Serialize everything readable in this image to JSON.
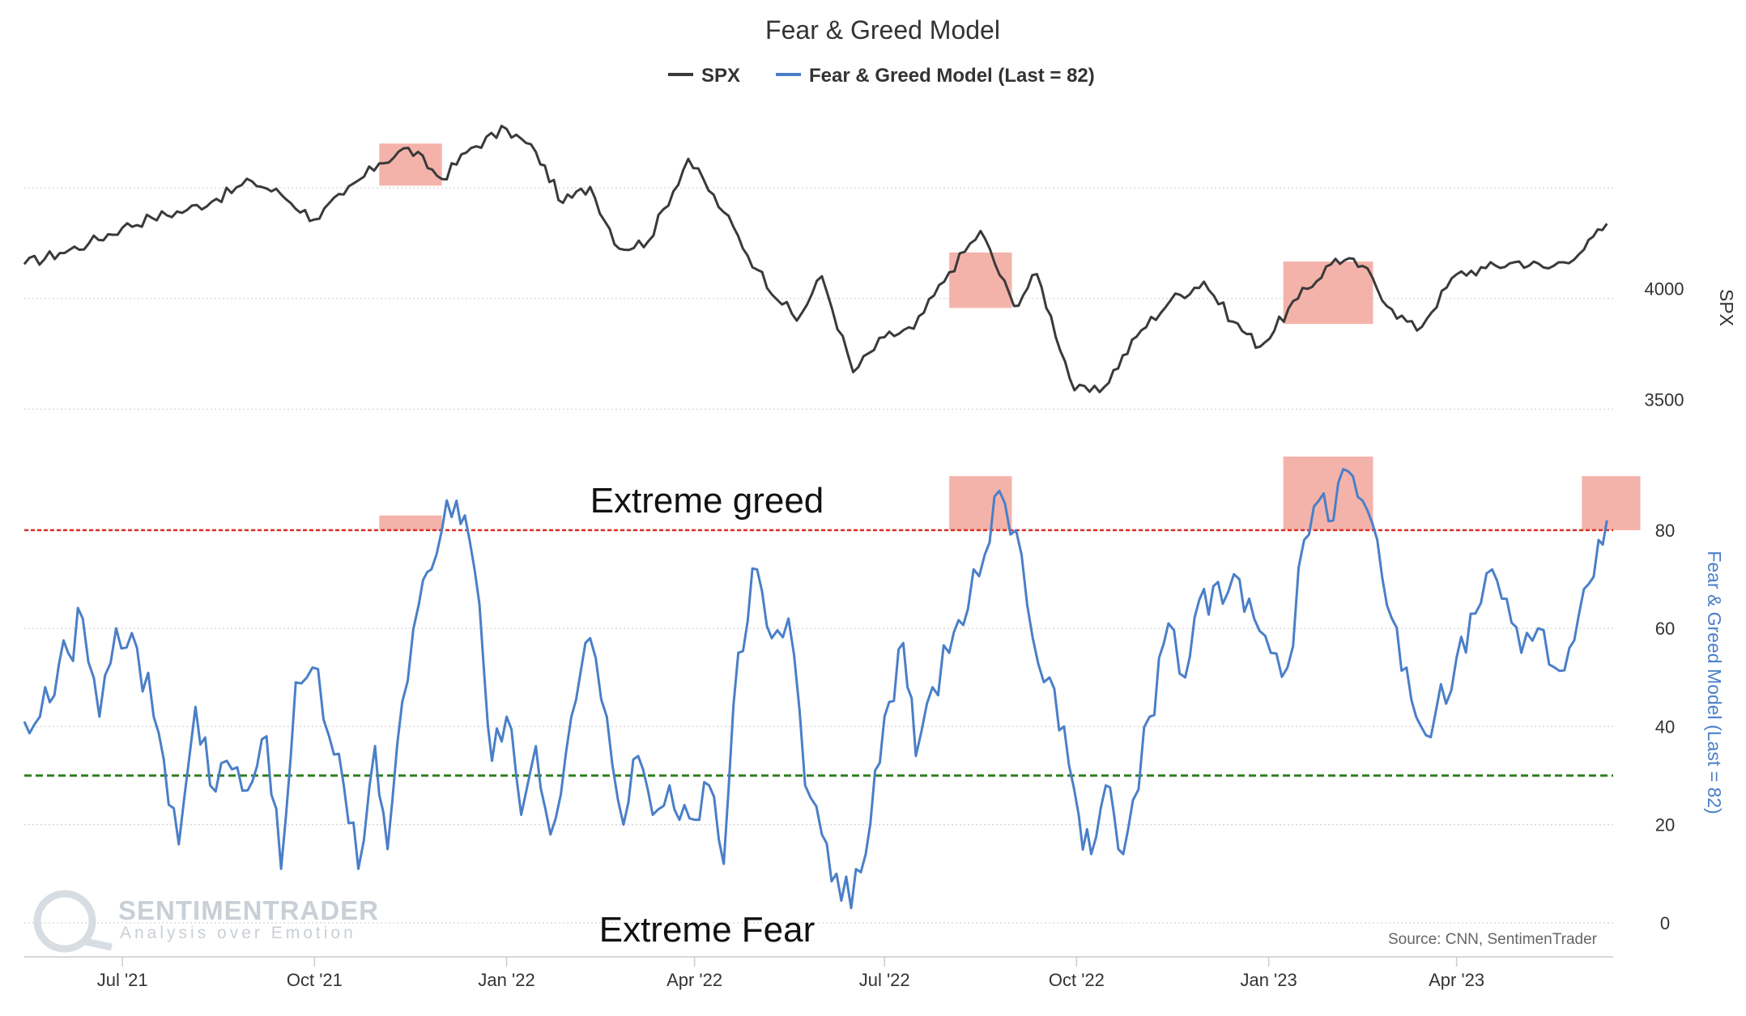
{
  "chart_data": {
    "type": "line",
    "title": "Fear & Greed Model",
    "legend": {
      "placement": "top-center",
      "entries": [
        "SPX",
        "Fear & Greed Model (Last = 82)"
      ]
    },
    "colors": {
      "spx": "#3a3a3a",
      "fg": "#4a7fc8",
      "greed_line": "#d93025",
      "fear_line": "#2e7d1e",
      "highlight": "#f2a69b"
    },
    "x_axis": {
      "range": [
        "2021-05-15",
        "2023-06-15"
      ],
      "tick_labels": [
        "Jul '21",
        "Oct '21",
        "Jan '22",
        "Apr '22",
        "Jul '22",
        "Oct '22",
        "Jan '23",
        "Apr '23"
      ],
      "tick_dates": [
        "2021-07-01",
        "2021-10-01",
        "2022-01-01",
        "2022-04-01",
        "2022-07-01",
        "2022-10-01",
        "2023-01-01",
        "2023-04-01"
      ]
    },
    "spx_axis": {
      "label": "SPX",
      "ticks": [
        3500,
        4000
      ],
      "range": [
        3300,
        4800
      ]
    },
    "fg_axis": {
      "label": "Fear & Greed Model (Last = 82)",
      "ticks": [
        0,
        20,
        40,
        60,
        80
      ],
      "range": [
        -2,
        94
      ]
    },
    "thresholds": {
      "extreme_greed": 80,
      "extreme_fear": 30,
      "greed_label": "Extreme greed",
      "fear_label": "Extreme Fear"
    },
    "greed_highlights": [
      {
        "start": "2021-11-01",
        "end": "2021-12-01"
      },
      {
        "start": "2022-08-01",
        "end": "2022-08-31"
      },
      {
        "start": "2023-01-08",
        "end": "2023-02-20"
      },
      {
        "start": "2023-05-31",
        "end": "2023-06-28"
      }
    ],
    "series": [
      {
        "name": "SPX",
        "points": [
          [
            "2021-05-15",
            4155
          ],
          [
            "2021-06-01",
            4205
          ],
          [
            "2021-06-15",
            4250
          ],
          [
            "2021-07-01",
            4320
          ],
          [
            "2021-07-15",
            4365
          ],
          [
            "2021-08-01",
            4400
          ],
          [
            "2021-08-15",
            4450
          ],
          [
            "2021-09-01",
            4530
          ],
          [
            "2021-09-15",
            4470
          ],
          [
            "2021-10-01",
            4357
          ],
          [
            "2021-10-15",
            4470
          ],
          [
            "2021-11-01",
            4610
          ],
          [
            "2021-11-15",
            4680
          ],
          [
            "2021-12-01",
            4540
          ],
          [
            "2021-12-15",
            4680
          ],
          [
            "2022-01-01",
            4766
          ],
          [
            "2022-01-15",
            4662
          ],
          [
            "2022-01-28",
            4432
          ],
          [
            "2022-02-10",
            4504
          ],
          [
            "2022-02-24",
            4225
          ],
          [
            "2022-03-10",
            4260
          ],
          [
            "2022-03-29",
            4631
          ],
          [
            "2022-04-15",
            4390
          ],
          [
            "2022-05-01",
            4130
          ],
          [
            "2022-05-20",
            3900
          ],
          [
            "2022-06-01",
            4100
          ],
          [
            "2022-06-16",
            3667
          ],
          [
            "2022-07-01",
            3825
          ],
          [
            "2022-07-15",
            3863
          ],
          [
            "2022-08-01",
            4118
          ],
          [
            "2022-08-16",
            4305
          ],
          [
            "2022-09-01",
            3966
          ],
          [
            "2022-09-12",
            4110
          ],
          [
            "2022-09-30",
            3585
          ],
          [
            "2022-10-12",
            3577
          ],
          [
            "2022-11-01",
            3856
          ],
          [
            "2022-11-15",
            3991
          ],
          [
            "2022-12-01",
            4076
          ],
          [
            "2022-12-15",
            3895
          ],
          [
            "2022-12-28",
            3783
          ],
          [
            "2023-01-15",
            3999
          ],
          [
            "2023-02-02",
            4179
          ],
          [
            "2023-02-15",
            4147
          ],
          [
            "2023-03-01",
            3951
          ],
          [
            "2023-03-13",
            3855
          ],
          [
            "2023-04-01",
            4109
          ],
          [
            "2023-04-15",
            4137
          ],
          [
            "2023-05-01",
            4167
          ],
          [
            "2023-05-15",
            4136
          ],
          [
            "2023-06-01",
            4221
          ],
          [
            "2023-06-12",
            4338
          ]
        ]
      },
      {
        "name": "Fear & Greed Model (Last = 82)",
        "points": [
          [
            "2021-05-15",
            41
          ],
          [
            "2021-05-25",
            48
          ],
          [
            "2021-06-05",
            55
          ],
          [
            "2021-06-12",
            62
          ],
          [
            "2021-06-20",
            42
          ],
          [
            "2021-06-28",
            60
          ],
          [
            "2021-07-08",
            56
          ],
          [
            "2021-07-16",
            42
          ],
          [
            "2021-07-28",
            16
          ],
          [
            "2021-08-05",
            44
          ],
          [
            "2021-08-12",
            28
          ],
          [
            "2021-08-20",
            33
          ],
          [
            "2021-08-30",
            27
          ],
          [
            "2021-09-08",
            38
          ],
          [
            "2021-09-15",
            11
          ],
          [
            "2021-09-22",
            49
          ],
          [
            "2021-09-30",
            52
          ],
          [
            "2021-10-08",
            38
          ],
          [
            "2021-10-15",
            28
          ],
          [
            "2021-10-22",
            11
          ],
          [
            "2021-10-30",
            36
          ],
          [
            "2021-11-05",
            15
          ],
          [
            "2021-11-12",
            45
          ],
          [
            "2021-11-20",
            65
          ],
          [
            "2021-11-26",
            72
          ],
          [
            "2021-12-01",
            80
          ],
          [
            "2021-12-08",
            86
          ],
          [
            "2021-12-12",
            83
          ],
          [
            "2021-12-19",
            65
          ],
          [
            "2021-12-25",
            33
          ],
          [
            "2022-01-01",
            42
          ],
          [
            "2022-01-08",
            22
          ],
          [
            "2022-01-15",
            36
          ],
          [
            "2022-01-22",
            18
          ],
          [
            "2022-02-01",
            42
          ],
          [
            "2022-02-10",
            58
          ],
          [
            "2022-02-18",
            42
          ],
          [
            "2022-02-26",
            20
          ],
          [
            "2022-03-05",
            34
          ],
          [
            "2022-03-12",
            22
          ],
          [
            "2022-03-20",
            28
          ],
          [
            "2022-04-01",
            21
          ],
          [
            "2022-04-08",
            28
          ],
          [
            "2022-04-15",
            12
          ],
          [
            "2022-04-22",
            55
          ],
          [
            "2022-05-01",
            72
          ],
          [
            "2022-05-08",
            58
          ],
          [
            "2022-05-16",
            62
          ],
          [
            "2022-05-24",
            28
          ],
          [
            "2022-06-01",
            18
          ],
          [
            "2022-06-08",
            10
          ],
          [
            "2022-06-15",
            3
          ],
          [
            "2022-06-22",
            14
          ],
          [
            "2022-07-01",
            42
          ],
          [
            "2022-07-10",
            57
          ],
          [
            "2022-07-16",
            34
          ],
          [
            "2022-07-24",
            48
          ],
          [
            "2022-08-01",
            55
          ],
          [
            "2022-08-10",
            64
          ],
          [
            "2022-08-18",
            75
          ],
          [
            "2022-08-25",
            88
          ],
          [
            "2022-09-02",
            80
          ],
          [
            "2022-09-10",
            58
          ],
          [
            "2022-09-18",
            50
          ],
          [
            "2022-09-25",
            40
          ],
          [
            "2022-10-02",
            22
          ],
          [
            "2022-10-08",
            14
          ],
          [
            "2022-10-15",
            28
          ],
          [
            "2022-10-21",
            15
          ],
          [
            "2022-10-28",
            25
          ],
          [
            "2022-11-05",
            42
          ],
          [
            "2022-11-14",
            61
          ],
          [
            "2022-11-22",
            50
          ],
          [
            "2022-12-01",
            68
          ],
          [
            "2022-12-10",
            65
          ],
          [
            "2022-12-18",
            70
          ],
          [
            "2022-12-25",
            62
          ],
          [
            "2023-01-02",
            55
          ],
          [
            "2023-01-10",
            52
          ],
          [
            "2023-01-18",
            78
          ],
          [
            "2023-01-25",
            86
          ],
          [
            "2023-02-01",
            82
          ],
          [
            "2023-02-08",
            92
          ],
          [
            "2023-02-15",
            86
          ],
          [
            "2023-02-22",
            78
          ],
          [
            "2023-03-01",
            62
          ],
          [
            "2023-03-08",
            52
          ],
          [
            "2023-03-15",
            40
          ],
          [
            "2023-03-22",
            43
          ],
          [
            "2023-04-01",
            54
          ],
          [
            "2023-04-10",
            63
          ],
          [
            "2023-04-18",
            72
          ],
          [
            "2023-04-25",
            66
          ],
          [
            "2023-05-02",
            55
          ],
          [
            "2023-05-10",
            60
          ],
          [
            "2023-05-18",
            52
          ],
          [
            "2023-05-25",
            56
          ],
          [
            "2023-06-01",
            68
          ],
          [
            "2023-06-08",
            78
          ],
          [
            "2023-06-12",
            82
          ]
        ]
      }
    ],
    "annotations": {
      "source": "Source: CNN, SentimenTrader",
      "watermark_title": "SENTIMENTRADER",
      "watermark_subtitle": "Analysis over Emotion"
    }
  }
}
